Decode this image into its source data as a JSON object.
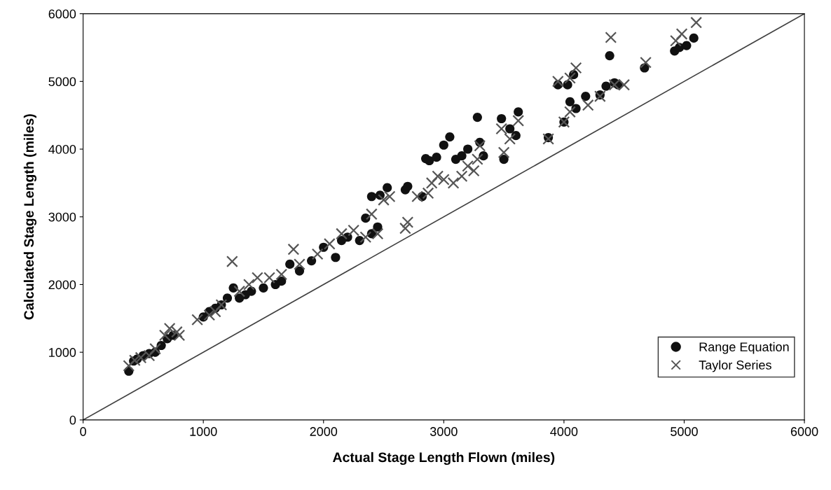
{
  "chart_data": {
    "type": "scatter",
    "xlabel": "Actual Stage Length Flown (miles)",
    "ylabel": "Calculated Stage Length (miles)",
    "xlim": [
      0,
      6000
    ],
    "ylim": [
      0,
      6000
    ],
    "xticks": [
      0,
      1000,
      2000,
      3000,
      4000,
      5000,
      6000
    ],
    "yticks": [
      0,
      1000,
      2000,
      3000,
      4000,
      5000,
      6000
    ],
    "grid": false,
    "legend": "bottom right",
    "series": [
      {
        "type": "line",
        "color": "#404040",
        "marker": "none",
        "x": [
          0,
          6000
        ],
        "values": [
          0,
          6000
        ]
      },
      {
        "name": "Range Equation",
        "color": "#111111",
        "marker": "circle",
        "x": [
          380,
          420,
          450,
          500,
          550,
          600,
          650,
          700,
          750,
          1000,
          1050,
          1100,
          1150,
          1200,
          1250,
          1300,
          1350,
          1400,
          1500,
          1600,
          1650,
          1720,
          1800,
          1900,
          2000,
          2100,
          2150,
          2200,
          2300,
          2350,
          2400,
          2400,
          2450,
          2470,
          2530,
          2680,
          2700,
          2820,
          2850,
          2880,
          2940,
          3000,
          3050,
          3100,
          3150,
          3200,
          3280,
          3300,
          3330,
          3480,
          3500,
          3550,
          3600,
          3620,
          3870,
          3950,
          4000,
          4030,
          4050,
          4080,
          4100,
          4180,
          4300,
          4350,
          4380,
          4420,
          4450,
          4670,
          4920,
          4960,
          5020,
          5080
        ],
        "values": [
          720,
          870,
          900,
          950,
          980,
          1000,
          1100,
          1200,
          1250,
          1520,
          1600,
          1650,
          1700,
          1800,
          1950,
          1800,
          1850,
          1900,
          1950,
          2000,
          2050,
          2300,
          2200,
          2350,
          2550,
          2400,
          2650,
          2700,
          2650,
          2980,
          2750,
          3300,
          2850,
          3320,
          3430,
          3400,
          3450,
          3300,
          3860,
          3830,
          3880,
          4060,
          4180,
          3850,
          3900,
          4000,
          4470,
          4100,
          3900,
          4450,
          3850,
          4300,
          4200,
          4550,
          4170,
          4950,
          4400,
          4950,
          4700,
          5100,
          4600,
          4780,
          4800,
          4930,
          5380,
          4980,
          4950,
          5200,
          5450,
          5500,
          5530,
          5640
        ]
      },
      {
        "name": "Taylor Series",
        "color": "#555555",
        "marker": "cross",
        "x": [
          380,
          430,
          480,
          550,
          600,
          680,
          720,
          780,
          800,
          950,
          1050,
          1100,
          1150,
          1240,
          1300,
          1380,
          1450,
          1550,
          1650,
          1750,
          1800,
          1950,
          2050,
          2150,
          2250,
          2350,
          2400,
          2450,
          2500,
          2550,
          2680,
          2700,
          2780,
          2870,
          2900,
          2950,
          3000,
          3080,
          3150,
          3200,
          3250,
          3280,
          3300,
          3480,
          3500,
          3550,
          3620,
          3870,
          3950,
          4000,
          4050,
          4100,
          4050,
          4200,
          4300,
          4390,
          4420,
          4500,
          4680,
          4930,
          4980,
          5100
        ],
        "values": [
          800,
          880,
          920,
          950,
          1050,
          1250,
          1350,
          1300,
          1250,
          1480,
          1550,
          1600,
          1700,
          2340,
          1900,
          2000,
          2100,
          2100,
          2150,
          2520,
          2300,
          2450,
          2600,
          2750,
          2800,
          2700,
          3040,
          2750,
          3250,
          3300,
          2830,
          2920,
          3300,
          3350,
          3500,
          3600,
          3550,
          3500,
          3600,
          3750,
          3680,
          3850,
          4050,
          4300,
          3950,
          4150,
          4420,
          4150,
          5000,
          4400,
          5050,
          5200,
          4550,
          4650,
          4780,
          5650,
          4950,
          4950,
          5280,
          5600,
          5700,
          5870
        ]
      }
    ]
  }
}
